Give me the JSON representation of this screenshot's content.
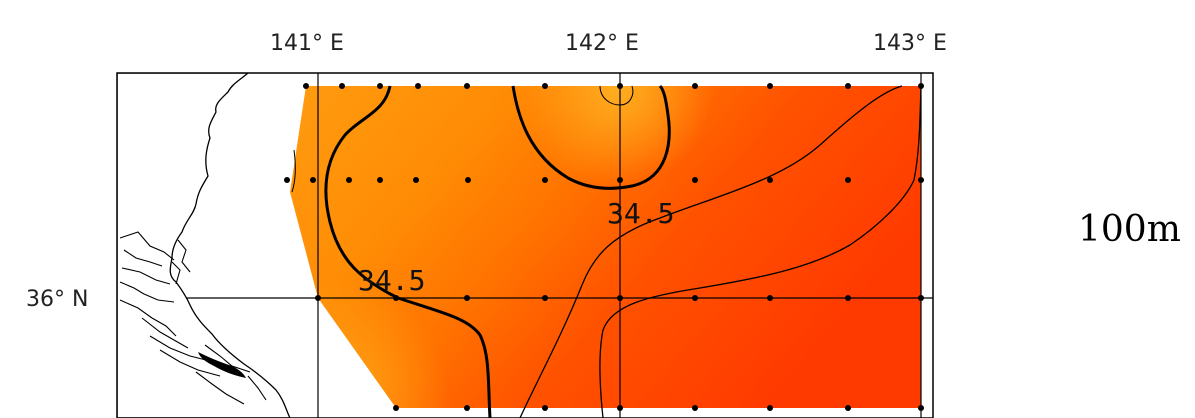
{
  "map": {
    "longitude_labels": [
      "141° E",
      "142° E",
      "143° E"
    ],
    "latitude_labels": [
      "36° N"
    ],
    "contour_labels": [
      "34.5",
      "34.5"
    ],
    "depth_label": "100m",
    "colors": {
      "field_light": "#ffa215",
      "field_mid": "#ff7a00",
      "field_dark": "#ff3d00",
      "land": "#ffffff",
      "coastline": "#000000",
      "grid": "#000000"
    },
    "icons": [
      "station-dot-icon"
    ]
  }
}
